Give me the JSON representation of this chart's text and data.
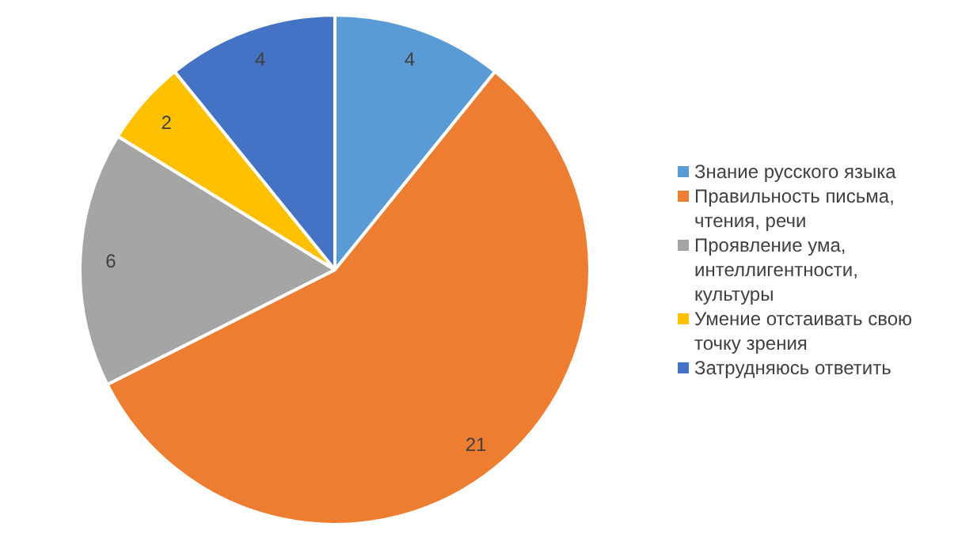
{
  "chart_data": {
    "type": "pie",
    "categories": [
      "Знание русского языка",
      "Правильность письма, чтения, речи",
      "Проявление ума, интеллигентности, культуры",
      "Умение отстаивать свою точку зрения",
      "Затрудняюсь ответить"
    ],
    "values": [
      4,
      21,
      6,
      2,
      4
    ],
    "colors": [
      "#5b9bd5",
      "#ed7d31",
      "#a5a5a5",
      "#ffc000",
      "#4472c4"
    ],
    "data_labels": true,
    "legend": "right"
  }
}
